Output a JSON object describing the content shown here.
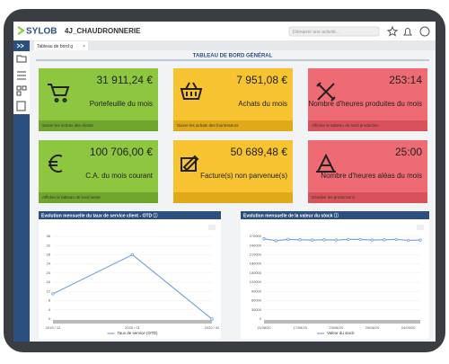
{
  "header": {
    "logo": "SYLOB",
    "company": "4J_CHAUDRONNERIE",
    "search": "Démarrer une activité..."
  },
  "tab": "Tableau de bord g",
  "page_title": "TABLEAU DE BORD GÉNÉRAL",
  "tiles": [
    {
      "value": "31 911,24 €",
      "label": "Portefeuille du mois",
      "footer": "Suivre les achats des clients",
      "color": "#8dc63f",
      "footer_color": "#6fa52c"
    },
    {
      "value": "7 951,08 €",
      "label": "Achats du mois",
      "footer": "Suivre les achats des fournisseurs",
      "color": "#f7c331",
      "footer_color": "#e0a91a"
    },
    {
      "value": "253:14",
      "label": "Nombre d'heures produites du mois",
      "footer": "Afficher le tableau de bord production",
      "color": "#ef6b73",
      "footer_color": "#d9525b"
    },
    {
      "value": "100 706,00 €",
      "label": "C.A. du mois courant",
      "footer": "Afficher le tableau de bord vente",
      "color": "#8dc63f",
      "footer_color": "#6fa52c"
    },
    {
      "value": "50 689,48 €",
      "label": "Facture(s) non parvenue(s)",
      "footer": null,
      "color": "#f7c331",
      "footer_color": "#e0a91a"
    },
    {
      "value": "25:00",
      "label": "Nombre d'heures aléas du mois",
      "footer": "Détailler les productions",
      "color": "#ef6b73",
      "footer_color": "#d9525b"
    }
  ],
  "charts": [
    {
      "type": "line",
      "title": "Evolution mensuelle du taux de service client - OTD ⓘ",
      "categories": [
        "2019 / 12",
        "2020 / 01",
        "2020 / 02"
      ],
      "series": [
        {
          "name": "Taux de service (OTD)",
          "color": "#7fa3d6",
          "values": [
            11,
            28,
            0
          ]
        }
      ],
      "ylim": [
        0,
        36
      ],
      "yticks": [
        0,
        4,
        8,
        12,
        16,
        20,
        24,
        28,
        32,
        36
      ],
      "grid": true
    },
    {
      "type": "line",
      "title": "Evolution mensuelle de la valeur du stock ⓘ",
      "categories": [
        "11/08/20",
        null,
        null,
        "17/08/20",
        null,
        null,
        "23/08/20",
        null,
        null,
        "29/08/20",
        null,
        null,
        "04/09/20",
        null
      ],
      "series": [
        {
          "name": "Valeur du stock",
          "color": "#7fa3d6",
          "values": [
            262000,
            256000,
            260000,
            259000,
            258000,
            259000,
            258000,
            260000,
            260000,
            258000,
            259000,
            260000,
            257000,
            258000
          ]
        }
      ],
      "ylim": [
        0,
        270000
      ],
      "yticks": [
        0,
        30000,
        60000,
        90000,
        120000,
        150000,
        180000,
        210000,
        240000,
        270000
      ],
      "grid": true
    }
  ]
}
